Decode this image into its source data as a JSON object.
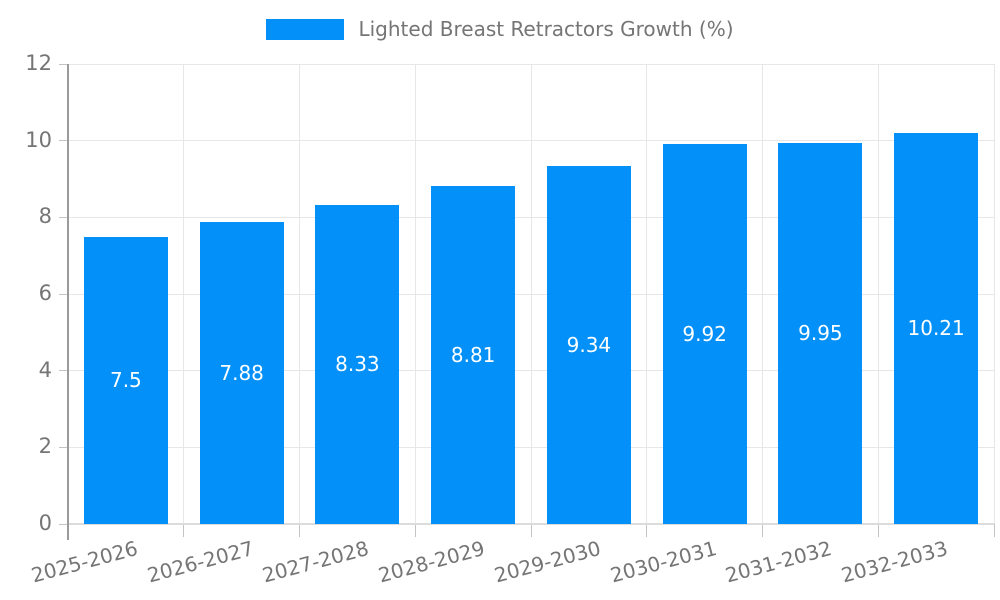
{
  "legend": {
    "label": "Lighted Breast Retractors Growth (%)"
  },
  "chart_data": {
    "type": "bar",
    "title": "",
    "series_name": "Lighted Breast Retractors Growth (%)",
    "categories": [
      "2025-2026",
      "2026-2027",
      "2027-2028",
      "2028-2029",
      "2029-2030",
      "2030-2031",
      "2031-2032",
      "2032-2033"
    ],
    "values": [
      7.5,
      7.88,
      8.33,
      8.81,
      9.34,
      9.92,
      9.95,
      10.21
    ],
    "value_labels": [
      "7.5",
      "7.88",
      "8.33",
      "8.81",
      "9.34",
      "9.92",
      "9.95",
      "10.21"
    ],
    "xlabel": "",
    "ylabel": "",
    "ylim": [
      0,
      12
    ],
    "yticks": [
      0,
      2,
      4,
      6,
      8,
      10,
      12
    ],
    "grid": true,
    "legend_position": "top-center",
    "x_label_rotation_deg": -15,
    "bar_color": "#0390f8",
    "grid_color": "#e7e7e7",
    "baseline_color": "#dcdcdc",
    "axis_color": "#9a9a9a",
    "tick_color": "#c4c4c4",
    "text_color": "#757575",
    "bar_label_color": "#ffffff"
  }
}
